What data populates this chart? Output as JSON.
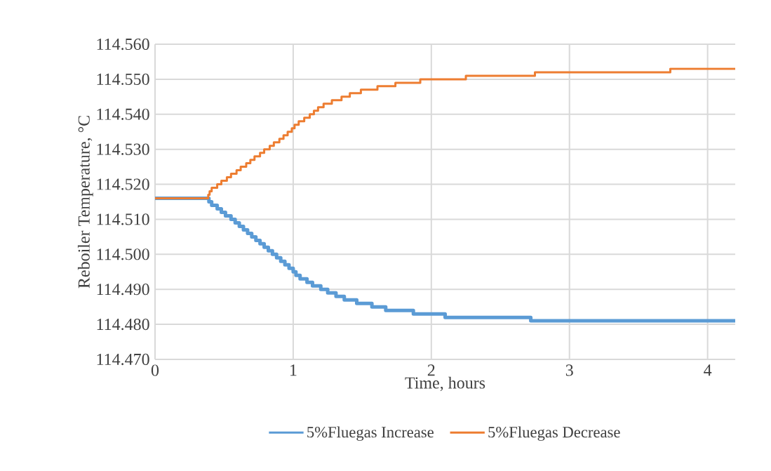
{
  "chart_data": {
    "type": "step",
    "xlabel": "Time, hours",
    "ylabel": "Reboiler Temperature, °C",
    "xlim": [
      0,
      4.2
    ],
    "xticks": [
      0,
      1,
      2,
      3,
      4
    ],
    "ylim": [
      114.47,
      114.56
    ],
    "yticks": [
      {
        "value": 114.47,
        "label": "114.470"
      },
      {
        "value": 114.48,
        "label": "114.480"
      },
      {
        "value": 114.49,
        "label": "114.490"
      },
      {
        "value": 114.5,
        "label": "114.500"
      },
      {
        "value": 114.51,
        "label": "114.510"
      },
      {
        "value": 114.52,
        "label": "114.520"
      },
      {
        "value": 114.53,
        "label": "114.530"
      },
      {
        "value": 114.54,
        "label": "114.540"
      },
      {
        "value": 114.55,
        "label": "114.550"
      },
      {
        "value": 114.56,
        "label": "114.560"
      }
    ],
    "grid": true,
    "legend": "bottom",
    "marker": "none",
    "line_style": "solid",
    "series": [
      {
        "name": "5%Fluegas Increase",
        "color": "#5b9bd5",
        "x": [
          0,
          0.39,
          0.41,
          0.45,
          0.48,
          0.51,
          0.55,
          0.58,
          0.61,
          0.64,
          0.67,
          0.7,
          0.73,
          0.76,
          0.79,
          0.82,
          0.85,
          0.88,
          0.91,
          0.94,
          0.97,
          1.0,
          1.02,
          1.05,
          1.1,
          1.14,
          1.2,
          1.25,
          1.31,
          1.37,
          1.46,
          1.57,
          1.67,
          1.87,
          2.1,
          2.72,
          4.2
        ],
        "values": [
          114.516,
          114.515,
          114.514,
          114.513,
          114.512,
          114.511,
          114.51,
          114.509,
          114.508,
          114.507,
          114.506,
          114.505,
          114.504,
          114.503,
          114.502,
          114.501,
          114.5,
          114.499,
          114.498,
          114.497,
          114.496,
          114.495,
          114.494,
          114.493,
          114.492,
          114.491,
          114.49,
          114.489,
          114.488,
          114.487,
          114.486,
          114.485,
          114.484,
          114.483,
          114.482,
          114.481,
          114.481
        ]
      },
      {
        "name": "5%Fluegas Decrease",
        "color": "#ed7d31",
        "x": [
          0,
          0.385,
          0.395,
          0.41,
          0.45,
          0.48,
          0.52,
          0.55,
          0.59,
          0.62,
          0.66,
          0.69,
          0.72,
          0.76,
          0.79,
          0.83,
          0.86,
          0.9,
          0.93,
          0.96,
          0.99,
          1.01,
          1.04,
          1.08,
          1.12,
          1.15,
          1.18,
          1.22,
          1.28,
          1.35,
          1.41,
          1.49,
          1.61,
          1.74,
          1.92,
          2.25,
          2.75,
          3.73,
          4.2
        ],
        "values": [
          114.516,
          114.517,
          114.518,
          114.519,
          114.52,
          114.521,
          114.522,
          114.523,
          114.524,
          114.525,
          114.526,
          114.527,
          114.528,
          114.529,
          114.53,
          114.531,
          114.532,
          114.533,
          114.534,
          114.535,
          114.536,
          114.537,
          114.538,
          114.539,
          114.54,
          114.541,
          114.542,
          114.543,
          114.544,
          114.545,
          114.546,
          114.547,
          114.548,
          114.549,
          114.55,
          114.551,
          114.552,
          114.553,
          114.553
        ]
      }
    ]
  }
}
